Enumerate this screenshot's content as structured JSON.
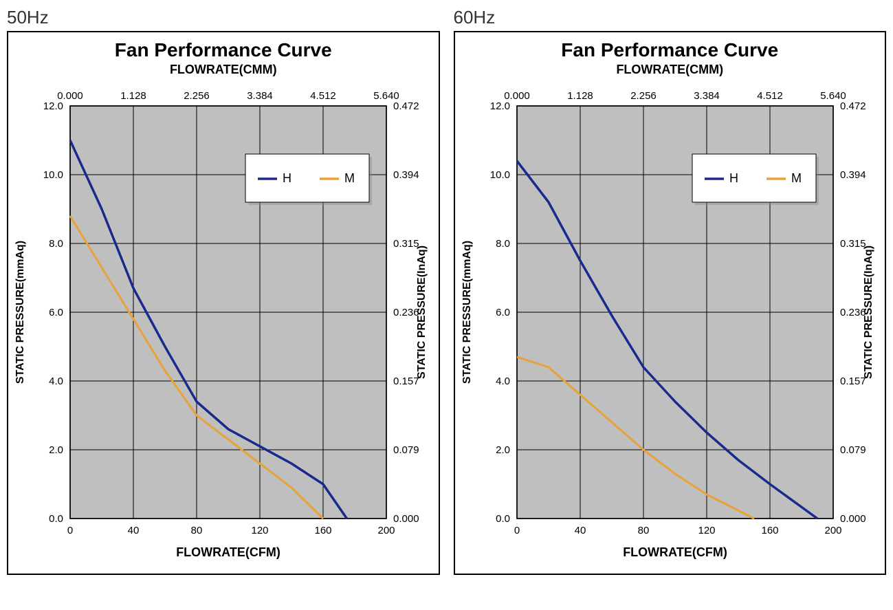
{
  "charts": [
    {
      "panel_label": "50Hz",
      "title": "Fan Performance Curve",
      "top_axis_label": "FLOWRATE(CMM)",
      "bottom_axis_label": "FLOWRATE(CFM)",
      "left_axis_label": "STATIC PRESSURE(mmAq)",
      "right_axis_label": "STATIC PRESSURE(InAq)",
      "plot_bg": "#bfbfbf",
      "grid_color": "#000000",
      "x_bottom": {
        "min": 0,
        "max": 200,
        "ticks": [
          0,
          40,
          80,
          120,
          160,
          200
        ]
      },
      "x_top_ticks": [
        "0.000",
        "1.128",
        "2.256",
        "3.384",
        "4.512",
        "5.640"
      ],
      "y_left": {
        "min": 0,
        "max": 12,
        "ticks": [
          "0.0",
          "2.0",
          "4.0",
          "6.0",
          "8.0",
          "10.0",
          "12.0"
        ]
      },
      "y_right_ticks": [
        "0.000",
        "0.079",
        "0.157",
        "0.236",
        "0.315",
        "0.394",
        "0.472"
      ],
      "legend": {
        "items": [
          {
            "label": "H",
            "color": "#1a2a8c"
          },
          {
            "label": "M",
            "color": "#e8a23a"
          }
        ]
      },
      "series": [
        {
          "name": "H",
          "color": "#1a2a8c",
          "width": 3.5,
          "points": [
            [
              0,
              11.0
            ],
            [
              20,
              9.0
            ],
            [
              40,
              6.7
            ],
            [
              60,
              5.0
            ],
            [
              80,
              3.4
            ],
            [
              100,
              2.6
            ],
            [
              120,
              2.1
            ],
            [
              140,
              1.6
            ],
            [
              160,
              1.0
            ],
            [
              175,
              0.0
            ]
          ]
        },
        {
          "name": "M",
          "color": "#e8a23a",
          "width": 3,
          "points": [
            [
              0,
              8.8
            ],
            [
              20,
              7.3
            ],
            [
              40,
              5.8
            ],
            [
              60,
              4.3
            ],
            [
              80,
              3.0
            ],
            [
              100,
              2.3
            ],
            [
              120,
              1.6
            ],
            [
              140,
              0.9
            ],
            [
              160,
              0.0
            ]
          ]
        }
      ]
    },
    {
      "panel_label": "60Hz",
      "title": "Fan Performance Curve",
      "top_axis_label": "FLOWRATE(CMM)",
      "bottom_axis_label": "FLOWRATE(CFM)",
      "left_axis_label": "STATIC PRESSURE(mmAq)",
      "right_axis_label": "STATIC PRESSURE(InAq)",
      "plot_bg": "#bfbfbf",
      "grid_color": "#000000",
      "x_bottom": {
        "min": 0,
        "max": 200,
        "ticks": [
          0,
          40,
          80,
          120,
          160,
          200
        ]
      },
      "x_top_ticks": [
        "0.000",
        "1.128",
        "2.256",
        "3.384",
        "4.512",
        "5.640"
      ],
      "y_left": {
        "min": 0,
        "max": 12,
        "ticks": [
          "0.0",
          "2.0",
          "4.0",
          "6.0",
          "8.0",
          "10.0",
          "12.0"
        ]
      },
      "y_right_ticks": [
        "0.000",
        "0.079",
        "0.157",
        "0.236",
        "0.315",
        "0.394",
        "0.472"
      ],
      "legend": {
        "items": [
          {
            "label": "H",
            "color": "#1a2a8c"
          },
          {
            "label": "M",
            "color": "#e8a23a"
          }
        ]
      },
      "series": [
        {
          "name": "H",
          "color": "#1a2a8c",
          "width": 3.5,
          "points": [
            [
              0,
              10.4
            ],
            [
              20,
              9.2
            ],
            [
              40,
              7.5
            ],
            [
              60,
              5.9
            ],
            [
              80,
              4.4
            ],
            [
              100,
              3.4
            ],
            [
              120,
              2.5
            ],
            [
              140,
              1.7
            ],
            [
              160,
              1.0
            ],
            [
              190,
              0.0
            ]
          ]
        },
        {
          "name": "M",
          "color": "#e8a23a",
          "width": 3,
          "points": [
            [
              0,
              4.7
            ],
            [
              20,
              4.4
            ],
            [
              40,
              3.6
            ],
            [
              60,
              2.8
            ],
            [
              80,
              2.0
            ],
            [
              100,
              1.3
            ],
            [
              120,
              0.7
            ],
            [
              150,
              0.0
            ]
          ]
        }
      ]
    }
  ],
  "typography": {
    "title_fontsize": 28,
    "axis_label_fontsize": 16,
    "tick_fontsize": 15
  }
}
